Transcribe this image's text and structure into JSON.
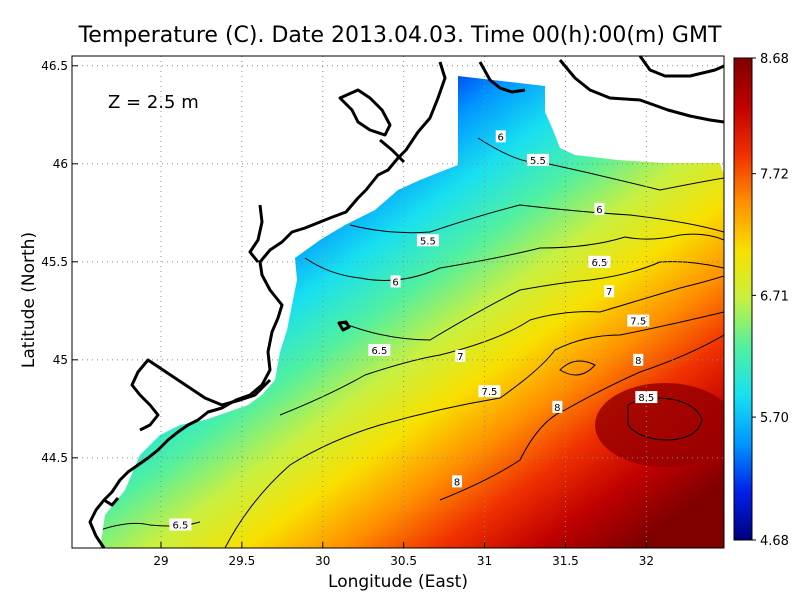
{
  "chart_data": {
    "type": "heatmap",
    "title": "Temperature (C). Date 2013.04.03. Time 00(h):00(m) GMT",
    "annotation": "Z = 2.5 m",
    "xlabel": "Longitude (East)",
    "ylabel": "Latitude (North)",
    "xlim": [
      28.45,
      32.48
    ],
    "ylim": [
      44.04,
      46.55
    ],
    "x_ticks": [
      {
        "value": 29,
        "label": "29"
      },
      {
        "value": 29.5,
        "label": "29.5"
      },
      {
        "value": 30,
        "label": "30"
      },
      {
        "value": 30.5,
        "label": "30.5"
      },
      {
        "value": 31,
        "label": "31"
      },
      {
        "value": 31.5,
        "label": "31.5"
      },
      {
        "value": 32,
        "label": "32"
      }
    ],
    "y_ticks": [
      {
        "value": 44.5,
        "label": "44.5"
      },
      {
        "value": 45,
        "label": "45"
      },
      {
        "value": 45.5,
        "label": "45.5"
      },
      {
        "value": 46,
        "label": "46"
      },
      {
        "value": 46.5,
        "label": "46.5"
      }
    ],
    "grid": true,
    "colorbar": {
      "min": 4.68,
      "max": 8.68,
      "tick_values": [
        8.68,
        7.72,
        6.71,
        5.7,
        4.68
      ],
      "tick_labels": [
        "8.68",
        "7.72",
        "6.71",
        "5.70",
        "4.68"
      ],
      "colors": [
        "#00007e",
        "#0020e8",
        "#0096ff",
        "#18e0f0",
        "#50f0a0",
        "#c8f040",
        "#f8e000",
        "#ff9000",
        "#f03000",
        "#c00000",
        "#800000"
      ]
    },
    "contour_labels": [
      {
        "text": "6",
        "lon": 31.1,
        "lat": 46.14
      },
      {
        "text": "5.5",
        "lon": 31.33,
        "lat": 46.02
      },
      {
        "text": "6",
        "lon": 31.71,
        "lat": 45.77
      },
      {
        "text": "5.5",
        "lon": 30.65,
        "lat": 45.61
      },
      {
        "text": "6.5",
        "lon": 31.71,
        "lat": 45.5
      },
      {
        "text": "6",
        "lon": 30.45,
        "lat": 45.4
      },
      {
        "text": "7",
        "lon": 31.77,
        "lat": 45.35
      },
      {
        "text": "7.5",
        "lon": 31.95,
        "lat": 45.2
      },
      {
        "text": "6.5",
        "lon": 30.35,
        "lat": 45.05
      },
      {
        "text": "7",
        "lon": 30.85,
        "lat": 45.02
      },
      {
        "text": "8",
        "lon": 31.95,
        "lat": 45.0
      },
      {
        "text": "7.5",
        "lon": 31.03,
        "lat": 44.84
      },
      {
        "text": "8.5",
        "lon": 32.0,
        "lat": 44.81
      },
      {
        "text": "8",
        "lon": 31.45,
        "lat": 44.76
      },
      {
        "text": "8",
        "lon": 30.83,
        "lat": 44.38
      },
      {
        "text": "6.5",
        "lon": 29.12,
        "lat": 44.16
      }
    ]
  }
}
